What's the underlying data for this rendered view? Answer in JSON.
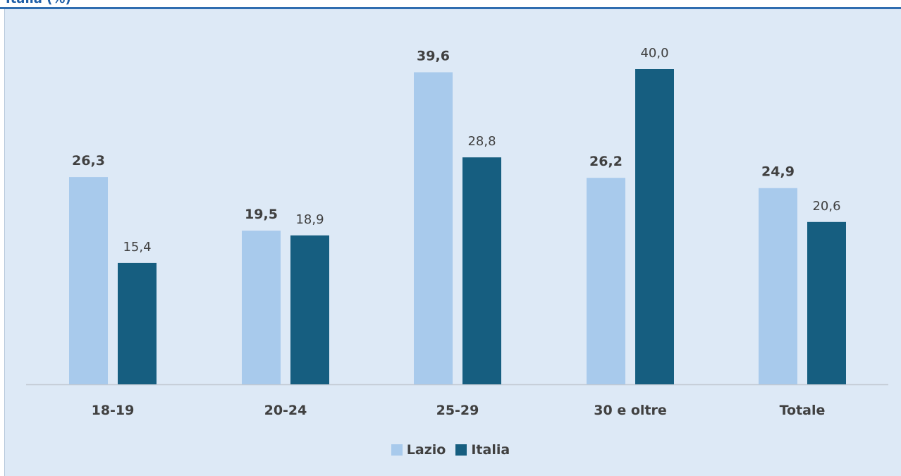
{
  "header": {
    "title": "Italia (%)"
  },
  "chart_data": {
    "type": "bar",
    "categories": [
      "18-19",
      "20-24",
      "25-29",
      "30 e oltre",
      "Totale"
    ],
    "series": [
      {
        "name": "Lazio",
        "values": [
          26.3,
          19.5,
          39.6,
          26.2,
          24.9
        ],
        "color": "#a8caec",
        "label_weight": "bold"
      },
      {
        "name": "Italia",
        "values": [
          15.4,
          18.9,
          28.8,
          40.0,
          20.6
        ],
        "color": "#165e80",
        "label_weight": "normal"
      }
    ],
    "value_labels": [
      [
        "26,3",
        "19,5",
        "39,6",
        "26,2",
        "24,9"
      ],
      [
        "15,4",
        "18,9",
        "28,8",
        "40,0",
        "20,6"
      ]
    ],
    "ylim": [
      0,
      40
    ],
    "grid": false,
    "legend_position": "bottom"
  }
}
